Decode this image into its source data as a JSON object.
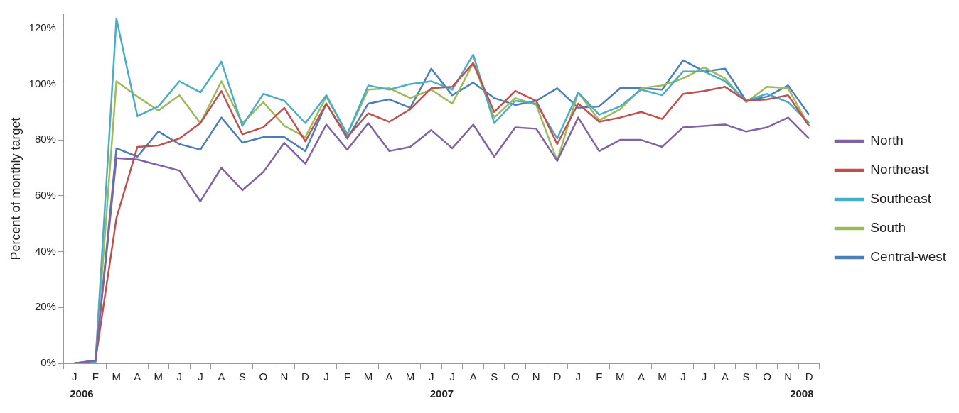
{
  "chart_data": {
    "type": "line",
    "ylabel": "Percent of monthly target",
    "categories": [
      "J",
      "F",
      "M",
      "A",
      "M",
      "J",
      "J",
      "A",
      "S",
      "O",
      "N",
      "D",
      "J",
      "F",
      "M",
      "A",
      "M",
      "J",
      "J",
      "A",
      "S",
      "O",
      "N",
      "D",
      "J",
      "F",
      "M",
      "A",
      "M",
      "J",
      "J",
      "A",
      "S",
      "O",
      "N",
      "D"
    ],
    "series": [
      {
        "name": "North",
        "color": "#7f63a6",
        "values": [
          0,
          1,
          73.5,
          73,
          71,
          69,
          58,
          70,
          62,
          68.5,
          79,
          71.5,
          85.5,
          76.5,
          86,
          76,
          77.5,
          83.5,
          77,
          85.5,
          74,
          84.5,
          84,
          72.5,
          88,
          76,
          80,
          80,
          77.5,
          84.5,
          85,
          85.5,
          83,
          84.5,
          88,
          80.5
        ]
      },
      {
        "name": "Northeast",
        "color": "#c0504d",
        "values": [
          0,
          1,
          52,
          77.5,
          78,
          80.5,
          86,
          97.5,
          82,
          84.5,
          91.5,
          79.5,
          93,
          81,
          89.5,
          86.5,
          91,
          98.5,
          99,
          107.5,
          90,
          97.5,
          94,
          78.5,
          93,
          86.5,
          88,
          90,
          87.5,
          96.5,
          97.5,
          99,
          94,
          94.5,
          96,
          85
        ]
      },
      {
        "name": "Southeast",
        "color": "#4bacc6",
        "values": [
          0,
          0.5,
          123.5,
          88.5,
          92,
          101,
          97,
          108,
          85,
          96.5,
          94,
          86,
          96,
          82,
          99.5,
          98,
          100,
          101,
          98,
          110.5,
          86,
          94,
          93,
          80.5,
          97,
          89,
          92,
          98,
          96,
          104.5,
          104.5,
          101,
          94,
          96.5,
          93.5,
          86
        ]
      },
      {
        "name": "South",
        "color": "#9bbb59",
        "values": [
          0,
          0.5,
          101,
          95.5,
          90.5,
          96,
          86,
          101,
          86,
          93.5,
          85,
          81,
          95.5,
          82,
          98,
          98.5,
          95,
          98,
          93,
          107.5,
          88,
          95,
          92.5,
          72.5,
          97,
          87,
          91,
          98.5,
          99.5,
          102,
          106,
          102,
          93.5,
          99,
          98.5,
          85
        ]
      },
      {
        "name": "Central-west",
        "color": "#4a7ebb",
        "values": [
          0,
          0.5,
          77,
          74,
          83,
          78.5,
          76.5,
          88,
          79,
          81,
          81,
          76,
          93,
          80.5,
          93,
          94.5,
          91.5,
          105.5,
          96,
          100.5,
          95,
          92.5,
          94,
          98.5,
          91.5,
          92,
          98.5,
          98.5,
          98,
          108.5,
          104.5,
          105.5,
          94,
          95.5,
          99.5,
          89
        ]
      }
    ],
    "ylim": [
      0,
      125
    ],
    "yticks": [
      {
        "value": 0,
        "label": "0%"
      },
      {
        "value": 20,
        "label": "20%"
      },
      {
        "value": 40,
        "label": "40%"
      },
      {
        "value": 60,
        "label": "60%"
      },
      {
        "value": 80,
        "label": "80%"
      },
      {
        "value": 100,
        "label": "100%"
      },
      {
        "value": 120,
        "label": "120%"
      }
    ],
    "legend": "right",
    "marker": "none",
    "line_style": "solid",
    "annotations": [
      "2006",
      "2007",
      "2008"
    ]
  }
}
